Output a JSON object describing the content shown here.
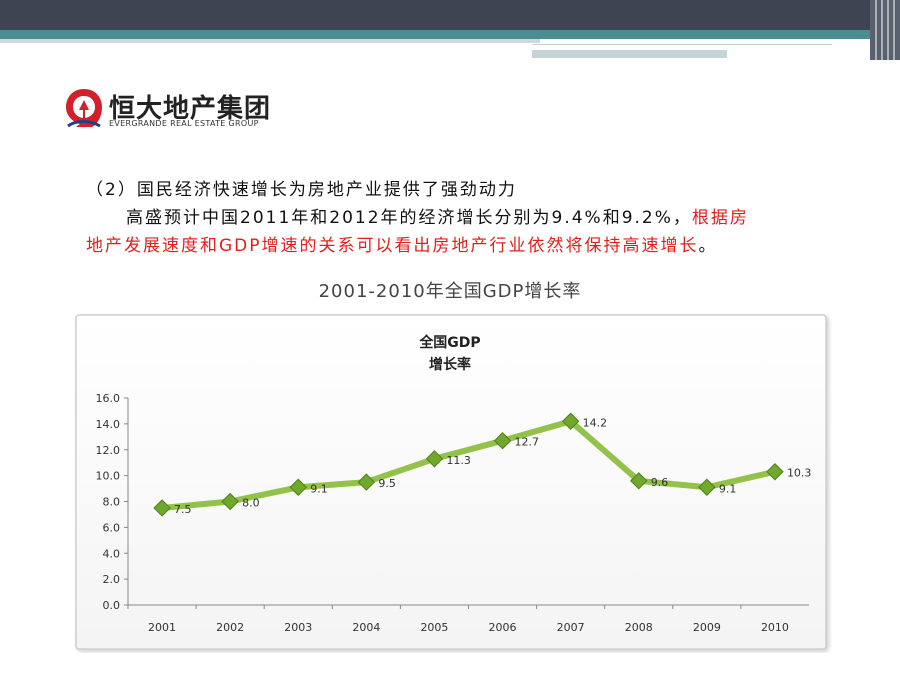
{
  "logo": {
    "name_cn": "恒大地产集团",
    "name_en": "EVERGRANDE REAL ESTATE GROUP"
  },
  "text": {
    "line1": "（2）国民经济快速增长为房地产业提供了强劲动力",
    "line2": "高盛预计中国2011年和2012年的经济增长分别为9.4%和9.2%，",
    "line2_red": "根据房",
    "line3_red": "地产发展速度和GDP增速的关系可以看出房地产行业依然将保持高速增长",
    "line3_end": "。"
  },
  "subtitle": "2001-2010年全国GDP增长率",
  "colors": {
    "line": "#93c24a",
    "marker": "#6fa82a",
    "topbar": "#3f4452",
    "accent": "#4b8d93",
    "red": "#e0201c"
  },
  "chart_data": {
    "type": "line",
    "title_line1": "全国GDP",
    "title_line2": "增长率",
    "categories": [
      "2001",
      "2002",
      "2003",
      "2004",
      "2005",
      "2006",
      "2007",
      "2008",
      "2009",
      "2010"
    ],
    "values": [
      7.5,
      8.0,
      9.1,
      9.5,
      11.3,
      12.7,
      14.2,
      9.6,
      9.1,
      10.3
    ],
    "data_labels": [
      "7.5",
      "8.0",
      "9.1",
      "9.5",
      "11.3",
      "12.7",
      "14.2",
      "9.6",
      "9.1",
      "10.3"
    ],
    "yticks": [
      "0.0",
      "2.0",
      "4.0",
      "6.0",
      "8.0",
      "10.0",
      "12.0",
      "14.0",
      "16.0"
    ],
    "ylim": [
      0,
      16
    ],
    "grid": false,
    "legend": "none"
  }
}
